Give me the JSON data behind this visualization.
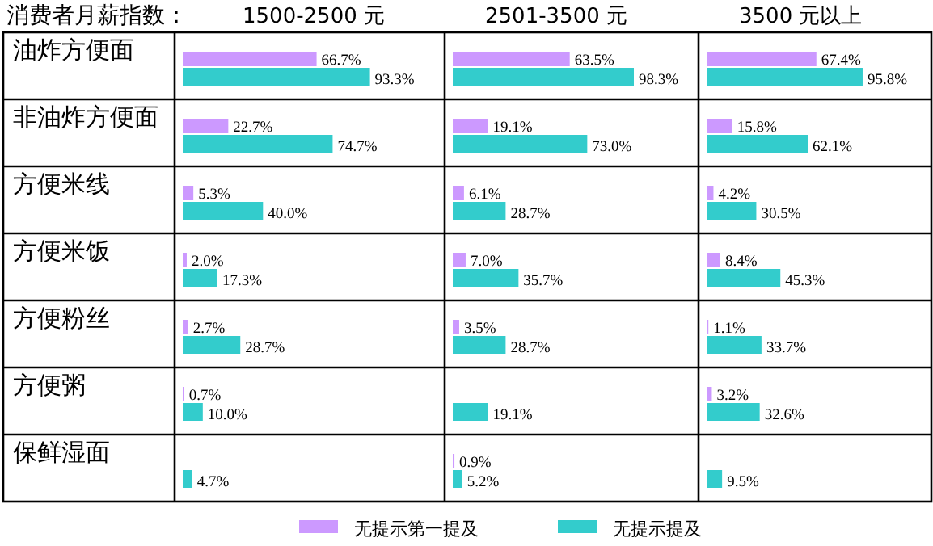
{
  "chart_data": [
    {
      "type": "bar",
      "orientation": "horizontal",
      "ylabel": "消费者月薪指数：",
      "title": "1500-2500 元",
      "categories": [
        "油炸方便面",
        "非油炸方便面",
        "方便米线",
        "方便米饭",
        "方便粉丝",
        "方便粥",
        "保鲜湿面"
      ],
      "tick_labels": "y",
      "legend": "bottom",
      "series": [
        {
          "name": "无提示第一提及",
          "color": "#cc99ff",
          "values": [
            66.7,
            22.7,
            5.3,
            2.0,
            2.7,
            0.7,
            null
          ],
          "value_labels": [
            "66.7%",
            "22.7%",
            "5.3%",
            "2.0%",
            "2.7%",
            "0.7%",
            null
          ]
        },
        {
          "name": "无提示提及",
          "color": "#33cccc",
          "values": [
            93.3,
            74.7,
            40.0,
            17.3,
            28.7,
            10.0,
            4.7
          ],
          "value_labels": [
            "93.3%",
            "74.7%",
            "40.0%",
            "17.3%",
            "28.7%",
            "10.0%",
            "4.7%"
          ]
        }
      ]
    },
    {
      "type": "bar",
      "orientation": "horizontal",
      "title": "2501-3500 元",
      "tick_labels": false,
      "series": [
        {
          "color": "#cc99ff",
          "values": [
            63.5,
            19.1,
            6.1,
            7.0,
            3.5,
            null,
            0.9
          ],
          "value_labels": [
            "63.5%",
            "19.1%",
            "6.1%",
            "7.0%",
            "3.5%",
            null,
            "0.9%"
          ]
        },
        {
          "color": "#33cccc",
          "values": [
            98.3,
            73.0,
            28.7,
            35.7,
            28.7,
            19.1,
            5.2
          ],
          "value_labels": [
            "98.3%",
            "73.0%",
            "28.7%",
            "35.7%",
            "28.7%",
            "19.1%",
            "5.2%"
          ]
        }
      ]
    },
    {
      "type": "bar",
      "orientation": "horizontal",
      "title": "3500 元以上",
      "tick_labels": false,
      "series": [
        {
          "color": "#cc99ff",
          "values": [
            67.4,
            15.8,
            4.2,
            8.4,
            1.1,
            3.2,
            null
          ],
          "value_labels": [
            "67.4%",
            "15.8%",
            "4.2%",
            "8.4%",
            "1.1%",
            "3.2%",
            null
          ]
        },
        {
          "color": "#33cccc",
          "values": [
            95.8,
            62.1,
            30.5,
            45.3,
            33.7,
            32.6,
            9.5
          ],
          "value_labels": [
            "95.8%",
            "62.1%",
            "30.5%",
            "45.3%",
            "33.7%",
            "32.6%",
            "9.5%"
          ]
        }
      ]
    }
  ]
}
